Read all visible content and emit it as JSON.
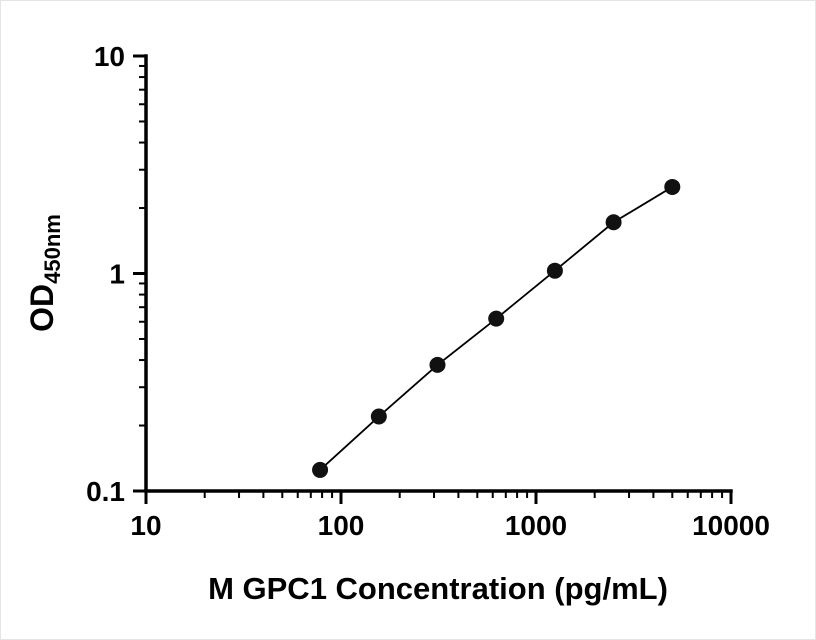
{
  "chart_data": {
    "type": "line",
    "title": "",
    "xlabel": "M GPC1 Concentration (pg/mL)",
    "ylabel_main": "OD",
    "ylabel_sub": "450nm",
    "xscale": "log",
    "yscale": "log",
    "xlim": [
      10,
      10000
    ],
    "ylim": [
      0.1,
      10
    ],
    "x": [
      78.1,
      156.3,
      312.5,
      625,
      1250,
      2500,
      5000
    ],
    "y": [
      0.125,
      0.22,
      0.38,
      0.62,
      1.03,
      1.72,
      2.5
    ],
    "x_ticks": [
      {
        "value": 10,
        "label": "10"
      },
      {
        "value": 100,
        "label": "100"
      },
      {
        "value": 1000,
        "label": "1000"
      },
      {
        "value": 10000,
        "label": "10000"
      }
    ],
    "y_ticks": [
      {
        "value": 0.1,
        "label": "0.1"
      },
      {
        "value": 1,
        "label": "1"
      },
      {
        "value": 10,
        "label": "10"
      }
    ],
    "line_color": "#000000",
    "marker_color": "#111111",
    "axis_color": "#000000",
    "grid": false,
    "legend": false
  }
}
